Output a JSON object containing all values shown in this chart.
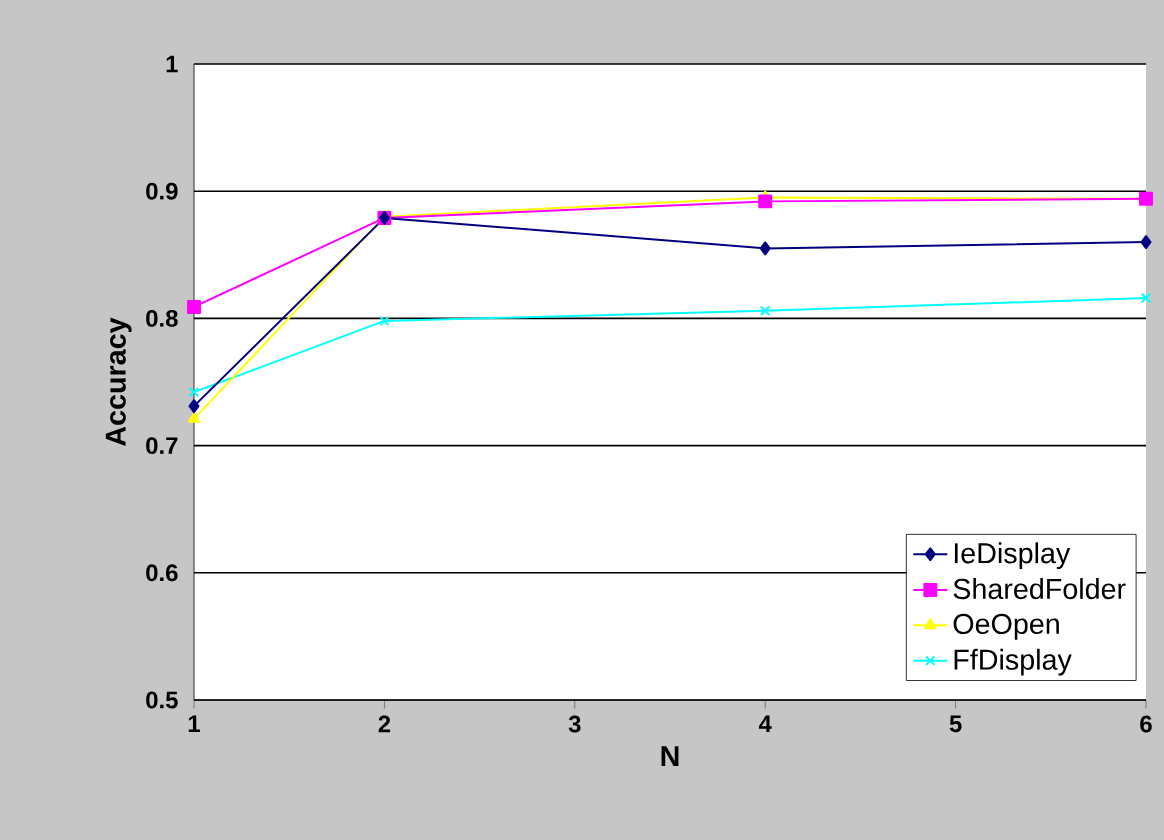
{
  "chart_data": {
    "type": "line",
    "xlabel": "N",
    "ylabel": "Accuracy",
    "x": [
      1,
      2,
      4,
      6
    ],
    "series": [
      {
        "name": "IeDisplay",
        "color": "#000080",
        "marker": "diamond",
        "values": [
          0.731,
          0.879,
          0.855,
          0.86
        ]
      },
      {
        "name": "SharedFolder",
        "color": "#ff00ff",
        "marker": "square",
        "values": [
          0.809,
          0.879,
          0.892,
          0.894
        ]
      },
      {
        "name": "OeOpen",
        "color": "#ffff00",
        "marker": "triangle",
        "values": [
          0.721,
          0.88,
          0.895,
          0.894
        ]
      },
      {
        "name": "FfDisplay",
        "color": "#00ffff",
        "marker": "cross",
        "values": [
          0.742,
          0.798,
          0.806,
          0.816
        ]
      }
    ],
    "xlim": [
      1,
      6
    ],
    "xticks": [
      1,
      2,
      3,
      4,
      5,
      6
    ],
    "ylim": [
      0.5,
      1
    ],
    "yticks": [
      {
        "value": 0.5,
        "label": "0.5"
      },
      {
        "value": 0.6,
        "label": "0.6"
      },
      {
        "value": 0.7,
        "label": "0.7"
      },
      {
        "value": 0.8,
        "label": "0.8"
      },
      {
        "value": 0.9,
        "label": "0.9"
      },
      {
        "value": 1,
        "label": "1"
      }
    ],
    "grid": "y",
    "legend": "bottom right",
    "line_style": "solid"
  }
}
